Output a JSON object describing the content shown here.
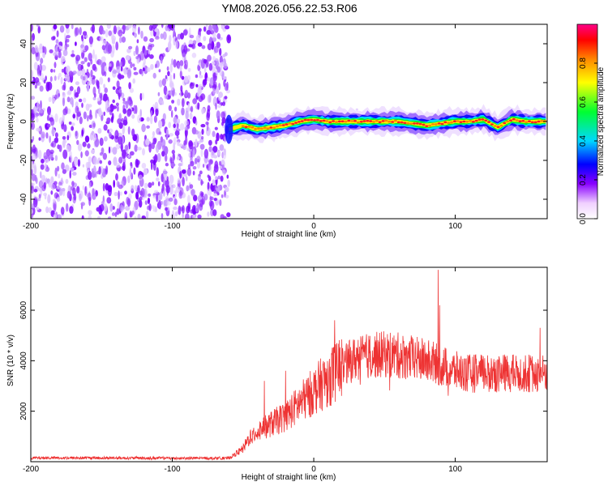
{
  "chart_data": [
    {
      "type": "heatmap",
      "title": "YM08.2026.056.22.53.R06",
      "xlabel": "Height of straight line (km)",
      "ylabel": "Frequency (Hz)",
      "xlim": [
        -200,
        165
      ],
      "ylim": [
        -50,
        50
      ],
      "xticks": [
        -200,
        -100,
        0,
        100
      ],
      "yticks": [
        -40,
        -20,
        0,
        20,
        40
      ],
      "noise_region_x": [
        -200,
        -60
      ],
      "signal_ridge": {
        "x": [
          -60,
          -50,
          -40,
          -30,
          -20,
          -10,
          0,
          10,
          20,
          30,
          40,
          50,
          60,
          70,
          80,
          90,
          100,
          110,
          120,
          130,
          140,
          150,
          165
        ],
        "freq": [
          -4,
          -2,
          -4,
          -3,
          -2,
          0,
          1,
          0,
          0,
          0,
          0,
          0,
          0,
          -1,
          -2,
          -1,
          0,
          0,
          1,
          -3,
          1,
          0,
          0
        ]
      },
      "colorbar": {
        "label": "Normalized spectral amplitude",
        "range": [
          0,
          1
        ],
        "ticks": [
          "0.0",
          "0.2",
          "0.4",
          "0.6",
          "0.8"
        ],
        "tick_values": [
          0.0,
          0.2,
          0.4,
          0.6,
          0.8
        ]
      }
    },
    {
      "type": "line",
      "xlabel": "Height of straight line (km)",
      "ylabel": "SNR (10 * v/v)",
      "xlim": [
        -200,
        165
      ],
      "ylim": [
        0,
        7700
      ],
      "xticks": [
        -200,
        -100,
        0,
        100
      ],
      "yticks": [
        2000,
        4000,
        6000
      ],
      "series": [
        {
          "name": "SNR",
          "color": "#ee3333",
          "envelope_x": [
            -200,
            -150,
            -100,
            -60,
            -50,
            -45,
            -40,
            -30,
            -20,
            -10,
            0,
            10,
            20,
            30,
            40,
            50,
            60,
            70,
            80,
            90,
            100,
            110,
            120,
            130,
            140,
            150,
            165
          ],
          "envelope_y": [
            150,
            150,
            140,
            140,
            500,
            1000,
            1200,
            1500,
            1800,
            2300,
            2800,
            3300,
            3800,
            4100,
            4200,
            4250,
            4200,
            4100,
            4000,
            3800,
            3600,
            3500,
            3500,
            3500,
            3500,
            3500,
            3500
          ],
          "peaks": [
            {
              "x": -35,
              "y": 3200
            },
            {
              "x": -20,
              "y": 3600
            },
            {
              "x": 88,
              "y": 7600
            },
            {
              "x": 89,
              "y": 6200
            },
            {
              "x": 160,
              "y": 5300
            }
          ]
        }
      ]
    }
  ]
}
